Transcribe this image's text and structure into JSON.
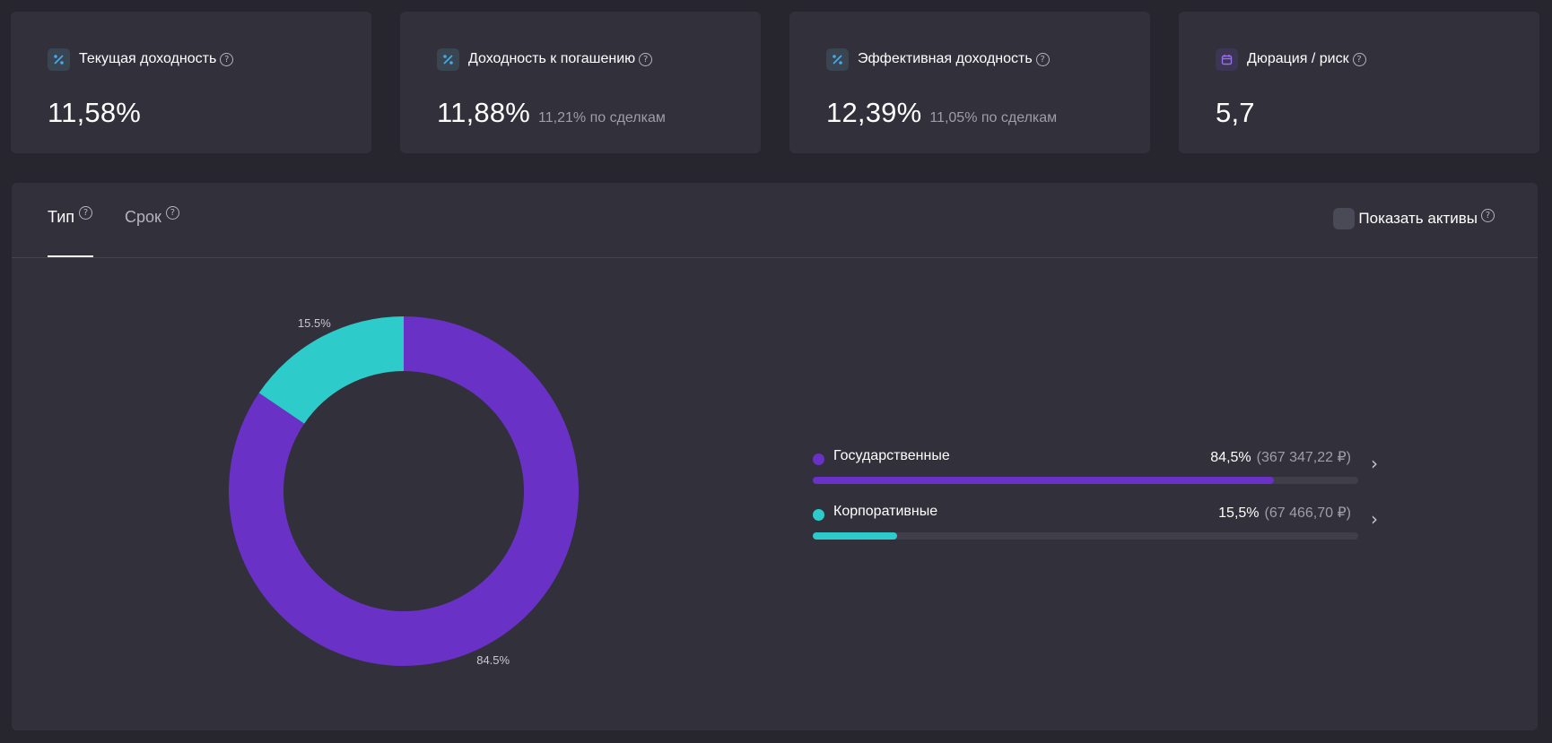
{
  "cards": [
    {
      "title": "Текущая доходность",
      "value": "11,58%",
      "sub": "",
      "icon": "percent-icon"
    },
    {
      "title": "Доходность к погашению",
      "value": "11,88%",
      "sub": "11,21% по сделкам",
      "icon": "percent-icon"
    },
    {
      "title": "Эффективная доходность",
      "value": "12,39%",
      "sub": "11,05% по сделкам",
      "icon": "percent-icon"
    },
    {
      "title": "Дюрация / риск",
      "value": "5,7",
      "sub": "",
      "icon": "calendar-icon"
    }
  ],
  "help_glyph": "?",
  "tabs": [
    {
      "label": "Тип",
      "active": true
    },
    {
      "label": "Срок",
      "active": false
    }
  ],
  "show_assets_label": "Показать активы",
  "colors": {
    "government": "#6a31c7",
    "corporate": "#2ecbcb"
  },
  "chart_data": {
    "type": "pie",
    "donut": true,
    "categories": [
      "Государственные",
      "Корпоративные"
    ],
    "values": [
      84.5,
      15.5
    ],
    "slice_labels": [
      "84.5%",
      "15.5%"
    ],
    "colors": [
      "#6a31c7",
      "#2ecbcb"
    ]
  },
  "legend": [
    {
      "name": "Государственные",
      "percent": "84,5%",
      "amount": "(367 347,22 ₽)",
      "share": 0.845,
      "color": "#6a31c7"
    },
    {
      "name": "Корпоративные",
      "percent": "15,5%",
      "amount": "(67 466,70 ₽)",
      "share": 0.155,
      "color": "#2ecbcb"
    }
  ],
  "chevron": "›"
}
